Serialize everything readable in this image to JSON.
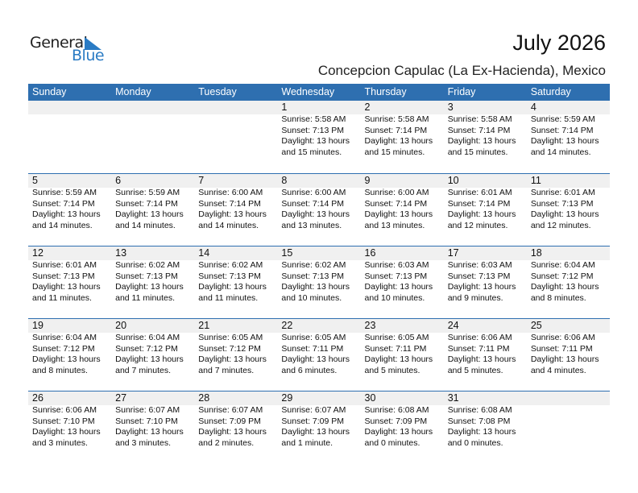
{
  "logo": {
    "line1": "General",
    "line2": "Blue"
  },
  "title": "July 2026",
  "location": "Concepcion Capulac (La Ex-Hacienda), Mexico",
  "colors": {
    "header": "#2e6fb0",
    "band": "#f0f0f0",
    "logo_blue": "#2a7bc4"
  },
  "weekdays": [
    "Sunday",
    "Monday",
    "Tuesday",
    "Wednesday",
    "Thursday",
    "Friday",
    "Saturday"
  ],
  "first_weekday_index": 3,
  "days": [
    {
      "day": "1",
      "sunrise": "Sunrise: 5:58 AM",
      "sunset": "Sunset: 7:13 PM",
      "daylight": "Daylight: 13 hours",
      "minutes": "and 15 minutes."
    },
    {
      "day": "2",
      "sunrise": "Sunrise: 5:58 AM",
      "sunset": "Sunset: 7:14 PM",
      "daylight": "Daylight: 13 hours",
      "minutes": "and 15 minutes."
    },
    {
      "day": "3",
      "sunrise": "Sunrise: 5:58 AM",
      "sunset": "Sunset: 7:14 PM",
      "daylight": "Daylight: 13 hours",
      "minutes": "and 15 minutes."
    },
    {
      "day": "4",
      "sunrise": "Sunrise: 5:59 AM",
      "sunset": "Sunset: 7:14 PM",
      "daylight": "Daylight: 13 hours",
      "minutes": "and 14 minutes."
    },
    {
      "day": "5",
      "sunrise": "Sunrise: 5:59 AM",
      "sunset": "Sunset: 7:14 PM",
      "daylight": "Daylight: 13 hours",
      "minutes": "and 14 minutes."
    },
    {
      "day": "6",
      "sunrise": "Sunrise: 5:59 AM",
      "sunset": "Sunset: 7:14 PM",
      "daylight": "Daylight: 13 hours",
      "minutes": "and 14 minutes."
    },
    {
      "day": "7",
      "sunrise": "Sunrise: 6:00 AM",
      "sunset": "Sunset: 7:14 PM",
      "daylight": "Daylight: 13 hours",
      "minutes": "and 14 minutes."
    },
    {
      "day": "8",
      "sunrise": "Sunrise: 6:00 AM",
      "sunset": "Sunset: 7:14 PM",
      "daylight": "Daylight: 13 hours",
      "minutes": "and 13 minutes."
    },
    {
      "day": "9",
      "sunrise": "Sunrise: 6:00 AM",
      "sunset": "Sunset: 7:14 PM",
      "daylight": "Daylight: 13 hours",
      "minutes": "and 13 minutes."
    },
    {
      "day": "10",
      "sunrise": "Sunrise: 6:01 AM",
      "sunset": "Sunset: 7:14 PM",
      "daylight": "Daylight: 13 hours",
      "minutes": "and 12 minutes."
    },
    {
      "day": "11",
      "sunrise": "Sunrise: 6:01 AM",
      "sunset": "Sunset: 7:13 PM",
      "daylight": "Daylight: 13 hours",
      "minutes": "and 12 minutes."
    },
    {
      "day": "12",
      "sunrise": "Sunrise: 6:01 AM",
      "sunset": "Sunset: 7:13 PM",
      "daylight": "Daylight: 13 hours",
      "minutes": "and 11 minutes."
    },
    {
      "day": "13",
      "sunrise": "Sunrise: 6:02 AM",
      "sunset": "Sunset: 7:13 PM",
      "daylight": "Daylight: 13 hours",
      "minutes": "and 11 minutes."
    },
    {
      "day": "14",
      "sunrise": "Sunrise: 6:02 AM",
      "sunset": "Sunset: 7:13 PM",
      "daylight": "Daylight: 13 hours",
      "minutes": "and 11 minutes."
    },
    {
      "day": "15",
      "sunrise": "Sunrise: 6:02 AM",
      "sunset": "Sunset: 7:13 PM",
      "daylight": "Daylight: 13 hours",
      "minutes": "and 10 minutes."
    },
    {
      "day": "16",
      "sunrise": "Sunrise: 6:03 AM",
      "sunset": "Sunset: 7:13 PM",
      "daylight": "Daylight: 13 hours",
      "minutes": "and 10 minutes."
    },
    {
      "day": "17",
      "sunrise": "Sunrise: 6:03 AM",
      "sunset": "Sunset: 7:13 PM",
      "daylight": "Daylight: 13 hours",
      "minutes": "and 9 minutes."
    },
    {
      "day": "18",
      "sunrise": "Sunrise: 6:04 AM",
      "sunset": "Sunset: 7:12 PM",
      "daylight": "Daylight: 13 hours",
      "minutes": "and 8 minutes."
    },
    {
      "day": "19",
      "sunrise": "Sunrise: 6:04 AM",
      "sunset": "Sunset: 7:12 PM",
      "daylight": "Daylight: 13 hours",
      "minutes": "and 8 minutes."
    },
    {
      "day": "20",
      "sunrise": "Sunrise: 6:04 AM",
      "sunset": "Sunset: 7:12 PM",
      "daylight": "Daylight: 13 hours",
      "minutes": "and 7 minutes."
    },
    {
      "day": "21",
      "sunrise": "Sunrise: 6:05 AM",
      "sunset": "Sunset: 7:12 PM",
      "daylight": "Daylight: 13 hours",
      "minutes": "and 7 minutes."
    },
    {
      "day": "22",
      "sunrise": "Sunrise: 6:05 AM",
      "sunset": "Sunset: 7:11 PM",
      "daylight": "Daylight: 13 hours",
      "minutes": "and 6 minutes."
    },
    {
      "day": "23",
      "sunrise": "Sunrise: 6:05 AM",
      "sunset": "Sunset: 7:11 PM",
      "daylight": "Daylight: 13 hours",
      "minutes": "and 5 minutes."
    },
    {
      "day": "24",
      "sunrise": "Sunrise: 6:06 AM",
      "sunset": "Sunset: 7:11 PM",
      "daylight": "Daylight: 13 hours",
      "minutes": "and 5 minutes."
    },
    {
      "day": "25",
      "sunrise": "Sunrise: 6:06 AM",
      "sunset": "Sunset: 7:11 PM",
      "daylight": "Daylight: 13 hours",
      "minutes": "and 4 minutes."
    },
    {
      "day": "26",
      "sunrise": "Sunrise: 6:06 AM",
      "sunset": "Sunset: 7:10 PM",
      "daylight": "Daylight: 13 hours",
      "minutes": "and 3 minutes."
    },
    {
      "day": "27",
      "sunrise": "Sunrise: 6:07 AM",
      "sunset": "Sunset: 7:10 PM",
      "daylight": "Daylight: 13 hours",
      "minutes": "and 3 minutes."
    },
    {
      "day": "28",
      "sunrise": "Sunrise: 6:07 AM",
      "sunset": "Sunset: 7:09 PM",
      "daylight": "Daylight: 13 hours",
      "minutes": "and 2 minutes."
    },
    {
      "day": "29",
      "sunrise": "Sunrise: 6:07 AM",
      "sunset": "Sunset: 7:09 PM",
      "daylight": "Daylight: 13 hours",
      "minutes": "and 1 minute."
    },
    {
      "day": "30",
      "sunrise": "Sunrise: 6:08 AM",
      "sunset": "Sunset: 7:09 PM",
      "daylight": "Daylight: 13 hours",
      "minutes": "and 0 minutes."
    },
    {
      "day": "31",
      "sunrise": "Sunrise: 6:08 AM",
      "sunset": "Sunset: 7:08 PM",
      "daylight": "Daylight: 13 hours",
      "minutes": "and 0 minutes."
    }
  ]
}
